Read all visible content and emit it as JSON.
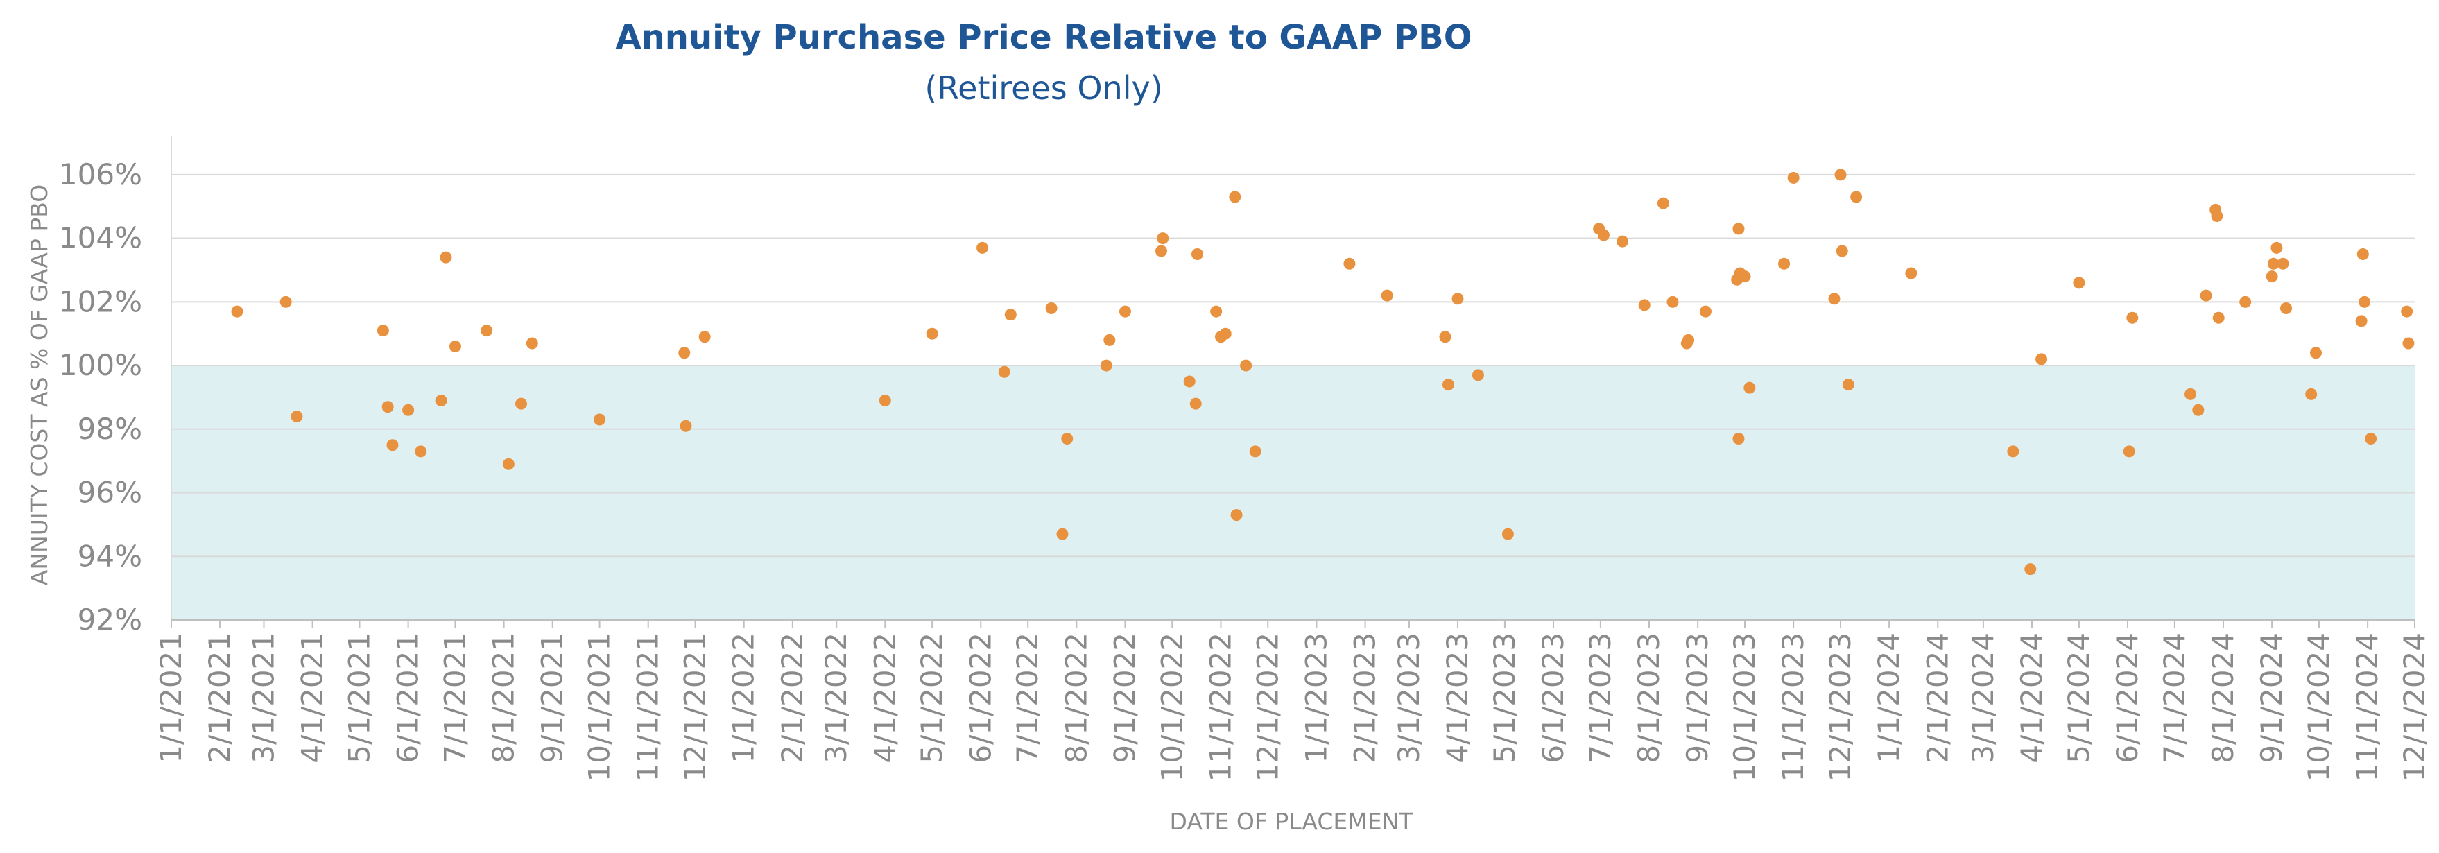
{
  "chart_data": {
    "type": "scatter",
    "title": "Annuity Purchase Price Relative to GAAP PBO",
    "subtitle": "(Retirees Only)",
    "xlabel": "DATE OF PLACEMENT",
    "ylabel": "ANNUITY COST AS % OF GAAP PBO",
    "x_ticks": [
      "1/1/2021",
      "2/1/2021",
      "3/1/2021",
      "4/1/2021",
      "5/1/2021",
      "6/1/2021",
      "7/1/2021",
      "8/1/2021",
      "9/1/2021",
      "10/1/2021",
      "11/1/2021",
      "12/1/2021",
      "1/1/2022",
      "2/1/2022",
      "3/1/2022",
      "4/1/2022",
      "5/1/2022",
      "6/1/2022",
      "7/1/2022",
      "8/1/2022",
      "9/1/2022",
      "10/1/2022",
      "11/1/2022",
      "12/1/2022",
      "1/1/2023",
      "2/1/2023",
      "3/1/2023",
      "4/1/2023",
      "5/1/2023",
      "6/1/2023",
      "7/1/2023",
      "8/1/2023",
      "9/1/2023",
      "10/1/2023",
      "11/1/2023",
      "12/1/2023",
      "1/1/2024",
      "2/1/2024",
      "3/1/2024",
      "4/1/2024",
      "5/1/2024",
      "6/1/2024",
      "7/1/2024",
      "8/1/2024",
      "9/1/2024",
      "10/1/2024",
      "11/1/2024",
      "12/1/2024"
    ],
    "y_ticks": [
      "92%",
      "94%",
      "96%",
      "98%",
      "100%",
      "102%",
      "104%",
      "106%"
    ],
    "ylim": [
      92,
      107
    ],
    "xlim": [
      "1/1/2021",
      "12/1/2024"
    ],
    "grid": true,
    "shaded_band": {
      "from": 92,
      "to": 100,
      "color": "#dff0f3"
    },
    "marker_color": "#e8913f",
    "points": [
      {
        "x": "2/12/2021",
        "y": 101.7
      },
      {
        "x": "3/15/2021",
        "y": 102.0
      },
      {
        "x": "3/22/2021",
        "y": 98.4
      },
      {
        "x": "5/16/2021",
        "y": 101.1
      },
      {
        "x": "5/19/2021",
        "y": 98.7
      },
      {
        "x": "5/22/2021",
        "y": 97.5
      },
      {
        "x": "6/1/2021",
        "y": 98.6
      },
      {
        "x": "6/9/2021",
        "y": 97.3
      },
      {
        "x": "6/22/2021",
        "y": 98.9
      },
      {
        "x": "6/25/2021",
        "y": 103.4
      },
      {
        "x": "7/1/2021",
        "y": 100.6
      },
      {
        "x": "7/21/2021",
        "y": 101.1
      },
      {
        "x": "8/4/2021",
        "y": 96.9
      },
      {
        "x": "8/12/2021",
        "y": 98.8
      },
      {
        "x": "8/19/2021",
        "y": 100.7
      },
      {
        "x": "10/1/2021",
        "y": 98.3
      },
      {
        "x": "11/24/2021",
        "y": 100.4
      },
      {
        "x": "11/25/2021",
        "y": 98.1
      },
      {
        "x": "12/7/2021",
        "y": 100.9
      },
      {
        "x": "4/1/2022",
        "y": 98.9
      },
      {
        "x": "5/1/2022",
        "y": 101.0
      },
      {
        "x": "6/2/2022",
        "y": 103.7
      },
      {
        "x": "6/16/2022",
        "y": 99.8
      },
      {
        "x": "6/20/2022",
        "y": 101.6
      },
      {
        "x": "7/16/2022",
        "y": 101.8
      },
      {
        "x": "7/23/2022",
        "y": 94.7
      },
      {
        "x": "7/26/2022",
        "y": 97.7
      },
      {
        "x": "8/20/2022",
        "y": 100.0
      },
      {
        "x": "8/22/2022",
        "y": 100.8
      },
      {
        "x": "9/1/2022",
        "y": 101.7
      },
      {
        "x": "9/24/2022",
        "y": 103.6
      },
      {
        "x": "9/25/2022",
        "y": 104.0
      },
      {
        "x": "10/12/2022",
        "y": 99.5
      },
      {
        "x": "10/16/2022",
        "y": 98.8
      },
      {
        "x": "10/17/2022",
        "y": 103.5
      },
      {
        "x": "10/29/2022",
        "y": 101.7
      },
      {
        "x": "11/1/2022",
        "y": 100.9
      },
      {
        "x": "11/4/2022",
        "y": 101.0
      },
      {
        "x": "11/10/2022",
        "y": 105.3
      },
      {
        "x": "11/11/2022",
        "y": 95.3
      },
      {
        "x": "11/17/2022",
        "y": 100.0
      },
      {
        "x": "11/23/2022",
        "y": 97.3
      },
      {
        "x": "1/22/2023",
        "y": 103.2
      },
      {
        "x": "2/15/2023",
        "y": 102.2
      },
      {
        "x": "3/24/2023",
        "y": 100.9
      },
      {
        "x": "3/26/2023",
        "y": 99.4
      },
      {
        "x": "4/1/2023",
        "y": 102.1
      },
      {
        "x": "4/14/2023",
        "y": 99.7
      },
      {
        "x": "5/3/2023",
        "y": 94.7
      },
      {
        "x": "6/30/2023",
        "y": 104.3
      },
      {
        "x": "7/3/2023",
        "y": 104.1
      },
      {
        "x": "7/15/2023",
        "y": 103.9
      },
      {
        "x": "7/29/2023",
        "y": 101.9
      },
      {
        "x": "8/10/2023",
        "y": 105.1
      },
      {
        "x": "8/16/2023",
        "y": 102.0
      },
      {
        "x": "8/25/2023",
        "y": 100.7
      },
      {
        "x": "8/26/2023",
        "y": 100.8
      },
      {
        "x": "9/6/2023",
        "y": 101.7
      },
      {
        "x": "9/26/2023",
        "y": 102.7
      },
      {
        "x": "9/27/2023",
        "y": 97.7
      },
      {
        "x": "9/27/2023",
        "y": 104.3
      },
      {
        "x": "9/28/2023",
        "y": 102.9
      },
      {
        "x": "10/1/2023",
        "y": 102.8
      },
      {
        "x": "10/4/2023",
        "y": 99.3
      },
      {
        "x": "10/26/2023",
        "y": 103.2
      },
      {
        "x": "11/1/2023",
        "y": 105.9
      },
      {
        "x": "11/27/2023",
        "y": 102.1
      },
      {
        "x": "12/1/2023",
        "y": 106.0
      },
      {
        "x": "12/2/2023",
        "y": 103.6
      },
      {
        "x": "12/6/2023",
        "y": 99.4
      },
      {
        "x": "12/11/2023",
        "y": 105.3
      },
      {
        "x": "1/15/2024",
        "y": 102.9
      },
      {
        "x": "3/20/2024",
        "y": 97.3
      },
      {
        "x": "3/31/2024",
        "y": 93.6
      },
      {
        "x": "4/7/2024",
        "y": 100.2
      },
      {
        "x": "5/1/2024",
        "y": 102.6
      },
      {
        "x": "6/2/2024",
        "y": 97.3
      },
      {
        "x": "6/4/2024",
        "y": 101.5
      },
      {
        "x": "7/11/2024",
        "y": 99.1
      },
      {
        "x": "7/16/2024",
        "y": 98.6
      },
      {
        "x": "7/21/2024",
        "y": 102.2
      },
      {
        "x": "7/27/2024",
        "y": 104.9
      },
      {
        "x": "7/28/2024",
        "y": 104.7
      },
      {
        "x": "7/29/2024",
        "y": 101.5
      },
      {
        "x": "8/15/2024",
        "y": 102.0
      },
      {
        "x": "9/1/2024",
        "y": 102.8
      },
      {
        "x": "9/2/2024",
        "y": 103.2
      },
      {
        "x": "9/4/2024",
        "y": 103.7
      },
      {
        "x": "9/8/2024",
        "y": 103.2
      },
      {
        "x": "9/10/2024",
        "y": 101.8
      },
      {
        "x": "9/26/2024",
        "y": 99.1
      },
      {
        "x": "9/29/2024",
        "y": 100.4
      },
      {
        "x": "10/28/2024",
        "y": 101.4
      },
      {
        "x": "10/29/2024",
        "y": 103.5
      },
      {
        "x": "10/30/2024",
        "y": 102.0
      },
      {
        "x": "11/3/2024",
        "y": 97.7
      },
      {
        "x": "11/26/2024",
        "y": 101.7
      },
      {
        "x": "11/27/2024",
        "y": 100.7
      }
    ]
  }
}
